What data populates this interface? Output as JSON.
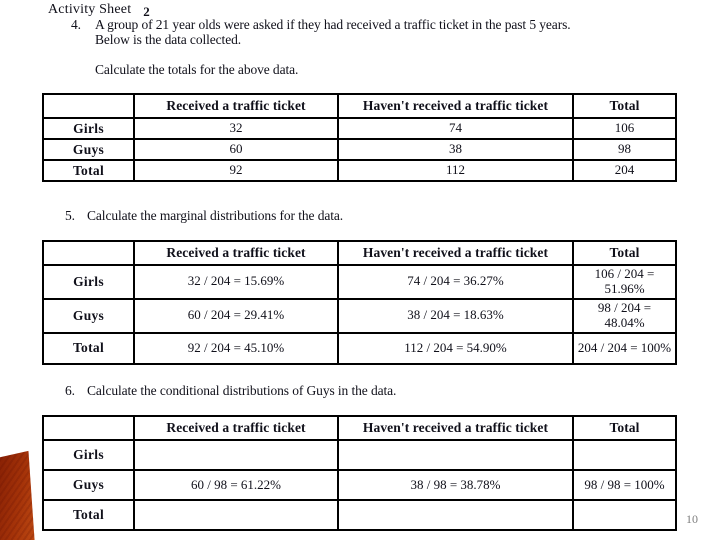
{
  "slide": {
    "title": "Activity Sheet",
    "title_number": "2",
    "page_number": "10",
    "accent_colors": {
      "corner_dark": "#8c2305",
      "corner_light": "#bc4812"
    },
    "text_color": "#10101a"
  },
  "questions": [
    {
      "number": "4.",
      "line1": "A group of 21 year olds were asked if they had received a traffic ticket in the past 5 years.",
      "line2": "Below is the data collected.",
      "instruction": "Calculate the totals for the above data."
    },
    {
      "number": "5.",
      "text": "Calculate the marginal distributions for the data."
    },
    {
      "number": "6.",
      "text": "Calculate the conditional distributions of Guys in the data."
    }
  ],
  "tables": [
    {
      "name": "totals-table",
      "headers": [
        "",
        "Received a traffic ticket",
        "Haven't received a traffic ticket",
        "Total"
      ],
      "rows": [
        {
          "label": "Girls",
          "cells": [
            "32",
            "74",
            "106"
          ]
        },
        {
          "label": "Guys",
          "cells": [
            "60",
            "38",
            "98"
          ]
        },
        {
          "label": "Total",
          "cells": [
            "92",
            "112",
            "204"
          ]
        }
      ]
    },
    {
      "name": "marginal-distributions-table",
      "headers": [
        "",
        "Received a traffic ticket",
        "Haven't received a traffic ticket",
        "Total"
      ],
      "rows": [
        {
          "label": "Girls",
          "cells": [
            "32 / 204 = 15.69%",
            "74 / 204 = 36.27%",
            "106 / 204 = 51.96%"
          ]
        },
        {
          "label": "Guys",
          "cells": [
            "60 / 204 = 29.41%",
            "38 / 204 = 18.63%",
            "98 / 204 = 48.04%"
          ]
        },
        {
          "label": "Total",
          "cells": [
            "92 / 204 = 45.10%",
            "112 / 204 = 54.90%",
            "204 / 204 = 100%"
          ]
        }
      ]
    },
    {
      "name": "conditional-distributions-table",
      "headers": [
        "",
        "Received a traffic ticket",
        "Haven't received a traffic ticket",
        "Total"
      ],
      "rows": [
        {
          "label": "Girls",
          "cells": [
            "",
            "",
            ""
          ]
        },
        {
          "label": "Guys",
          "cells": [
            "60 / 98 = 61.22%",
            "38 / 98 = 38.78%",
            "98 / 98 = 100%"
          ]
        },
        {
          "label": "Total",
          "cells": [
            "",
            "",
            ""
          ]
        }
      ]
    }
  ]
}
